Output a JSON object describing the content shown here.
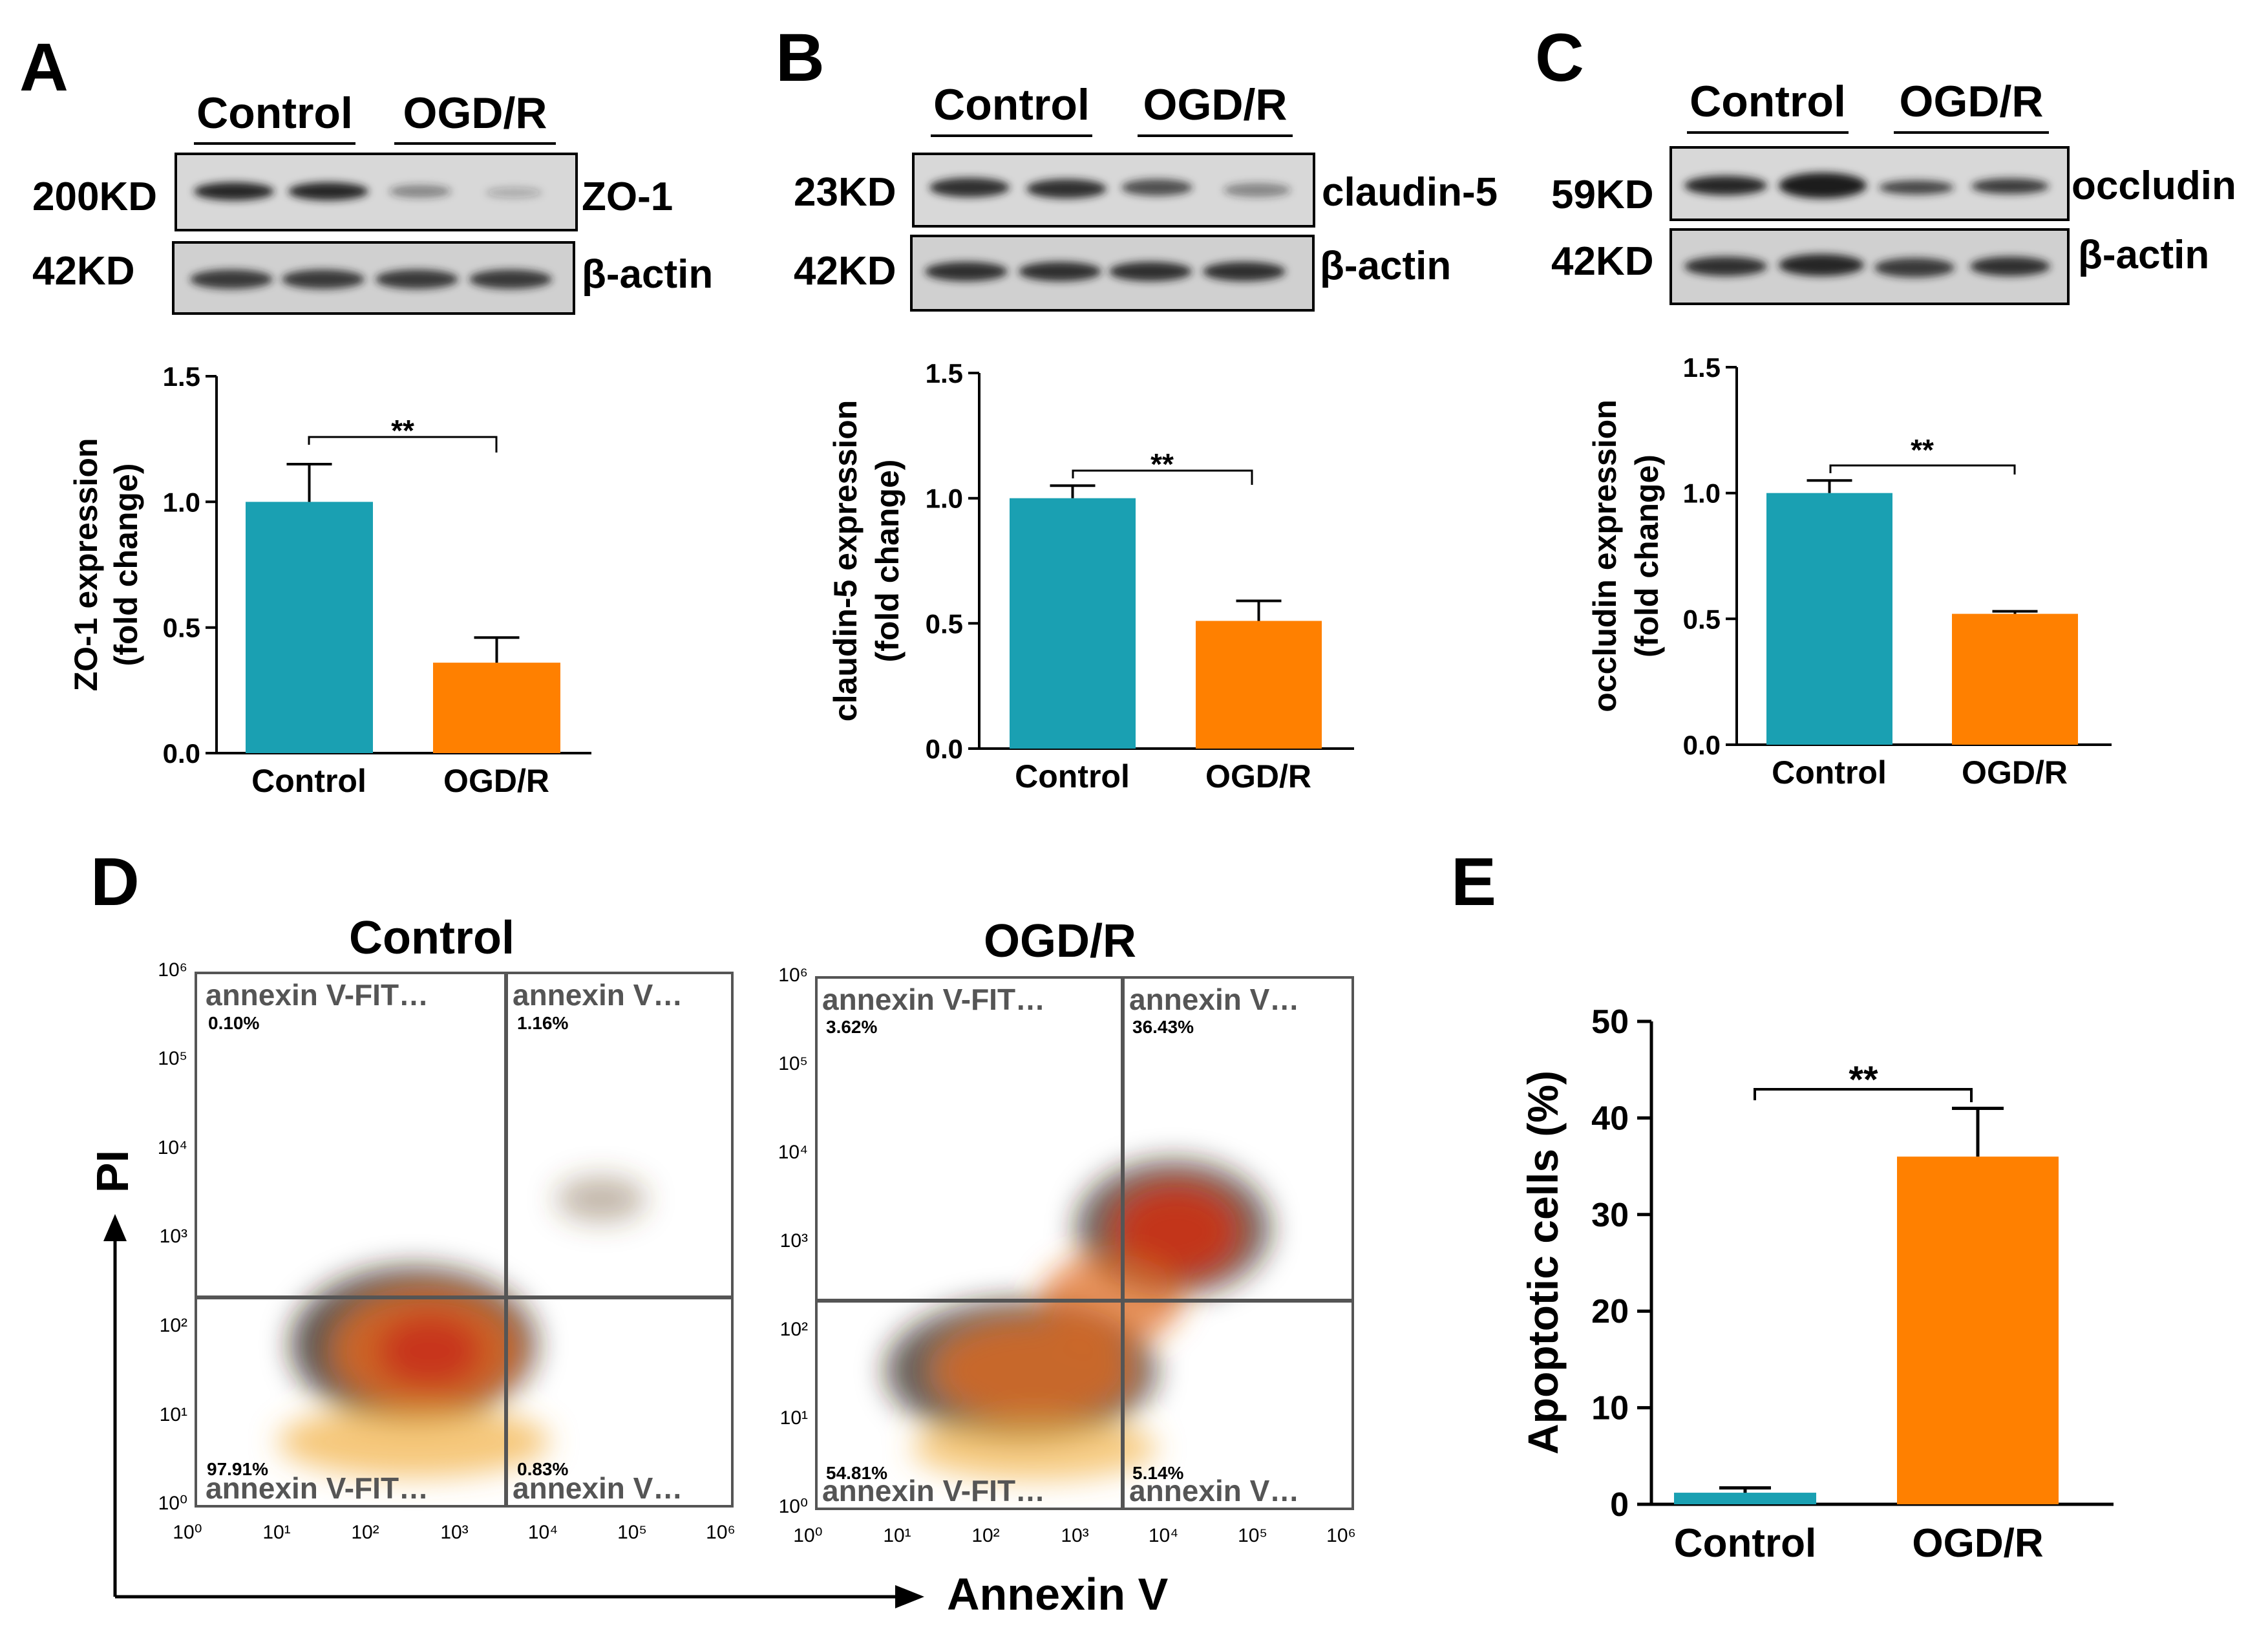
{
  "colors": {
    "control": "#1AA0B2",
    "ogdr": "#FF8000",
    "axis": "#000000",
    "flow_gate": "#555555",
    "blot_bg": "#D8D8D8",
    "band": "#1F1F1F"
  },
  "blots": [
    {
      "panel": "A",
      "groups": [
        "Control",
        "OGD/R"
      ],
      "rows": [
        {
          "kd": "200KD",
          "protein": "ZO-1"
        },
        {
          "kd": "42KD",
          "protein": "β-actin"
        }
      ]
    },
    {
      "panel": "B",
      "groups": [
        "Control",
        "OGD/R"
      ],
      "rows": [
        {
          "kd": "23KD",
          "protein": "claudin-5"
        },
        {
          "kd": "42KD",
          "protein": "β-actin"
        }
      ]
    },
    {
      "panel": "C",
      "groups": [
        "Control",
        "OGD/R"
      ],
      "rows": [
        {
          "kd": "59KD",
          "protein": "occludin"
        },
        {
          "kd": "42KD",
          "protein": "β-actin"
        }
      ]
    }
  ],
  "chart_data": [
    {
      "panel": "A",
      "type": "bar",
      "categories": [
        "Control",
        "OGD/R"
      ],
      "values": [
        1.0,
        0.36
      ],
      "errors": [
        0.15,
        0.1
      ],
      "ylabel_line1": "ZO-1 expression",
      "ylabel_line2": "(fold change)",
      "ylim": [
        0,
        1.5
      ],
      "yticks": [
        "0.0",
        "0.5",
        "1.0",
        "1.5"
      ],
      "significance": "**"
    },
    {
      "panel": "B",
      "type": "bar",
      "categories": [
        "Control",
        "OGD/R"
      ],
      "values": [
        1.0,
        0.51
      ],
      "errors": [
        0.05,
        0.08
      ],
      "ylabel_line1": "claudin-5 expression",
      "ylabel_line2": "(fold change)",
      "ylim": [
        0,
        1.5
      ],
      "yticks": [
        "0.0",
        "0.5",
        "1.0",
        "1.5"
      ],
      "significance": "**"
    },
    {
      "panel": "C",
      "type": "bar",
      "categories": [
        "Control",
        "OGD/R"
      ],
      "values": [
        1.0,
        0.52
      ],
      "errors": [
        0.05,
        0.01
      ],
      "ylabel_line1": "occludin expression",
      "ylabel_line2": "(fold change)",
      "ylim": [
        0,
        1.5
      ],
      "yticks": [
        "0.0",
        "0.5",
        "1.0",
        "1.5"
      ],
      "significance": "**"
    },
    {
      "panel": "E",
      "type": "bar",
      "categories": [
        "Control",
        "OGD/R"
      ],
      "values": [
        1.2,
        36
      ],
      "errors": [
        0.5,
        5
      ],
      "ylabel": "Apoptotic cells (%)",
      "ylim": [
        0,
        50
      ],
      "yticks": [
        "0",
        "10",
        "20",
        "30",
        "40",
        "50"
      ],
      "significance": "**"
    }
  ],
  "flow": {
    "panel": "D",
    "y_axis_label": "PI",
    "x_axis_label": "Annexin V",
    "tick_labels": [
      "10⁰",
      "10¹",
      "10²",
      "10³",
      "10⁴",
      "10⁵",
      "10⁶"
    ],
    "plots": [
      {
        "title": "Control",
        "q_ul_label": "annexin  V-FIT…",
        "q_ul_pct": "0.10%",
        "q_ur_label": "annexin  V…",
        "q_ur_pct": "1.16%",
        "q_ll_label": "annexin  V-FIT…",
        "q_ll_pct": "97.91%",
        "q_lr_label": "annexin  V…",
        "q_lr_pct": "0.83%"
      },
      {
        "title": "OGD/R",
        "q_ul_label": "annexin  V-FIT…",
        "q_ul_pct": "3.62%",
        "q_ur_label": "annexin  V…",
        "q_ur_pct": "36.43%",
        "q_ll_label": "annexin  V-FIT…",
        "q_ll_pct": "54.81%",
        "q_lr_label": "annexin  V…",
        "q_lr_pct": "5.14%"
      }
    ]
  }
}
